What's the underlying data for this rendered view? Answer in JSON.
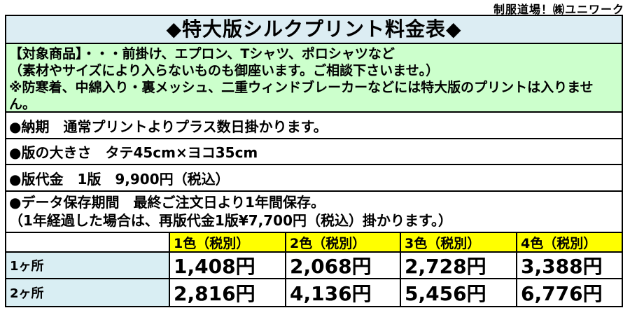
{
  "header": {
    "brand": "制服道場！㈱ユニワーク"
  },
  "title": "◆特大版シルクプリント料金表◆",
  "target_products": {
    "line1": "【対象商品】・・・前掛け、エプロン、Tシャツ、ポロシャツなど",
    "line2": "（素材やサイズにより入らないものも御座います。ご相談下さいませ。）",
    "line3": "※防寒着、中綿入り・裏メッシュ、二重ウィンドブレーカーなどには特大版のプリントは入りません。"
  },
  "info_rows": {
    "delivery": "●納期　通常プリントよりプラス数日掛かります。",
    "plate_size": "●版の大きさ　タテ45cm×ヨコ35cm",
    "plate_fee": "●版代金　1版　9,900円（税込）",
    "retention_line1": "●データ保存期間　最終ご注文日より1年間保存。",
    "retention_line2": "（1年経過した場合は、再版代金1版¥7,700円（税込）掛かります。）"
  },
  "price_table": {
    "headers": [
      "",
      "1色（税別）",
      "2色（税別）",
      "3色（税別）",
      "4色（税別）"
    ],
    "rows": [
      {
        "label": "1ヶ所",
        "values": [
          "1,408円",
          "2,068円",
          "2,728円",
          "3,388円"
        ]
      },
      {
        "label": "2ヶ所",
        "values": [
          "2,816円",
          "4,136円",
          "5,456円",
          "6,776円"
        ]
      }
    ]
  },
  "colors": {
    "title_bg": "#dcedf3",
    "section_bg": "#ccffcc",
    "table_header_bg": "#ffff00",
    "row_label_bg": "#d9eef3",
    "border": "#000000"
  }
}
